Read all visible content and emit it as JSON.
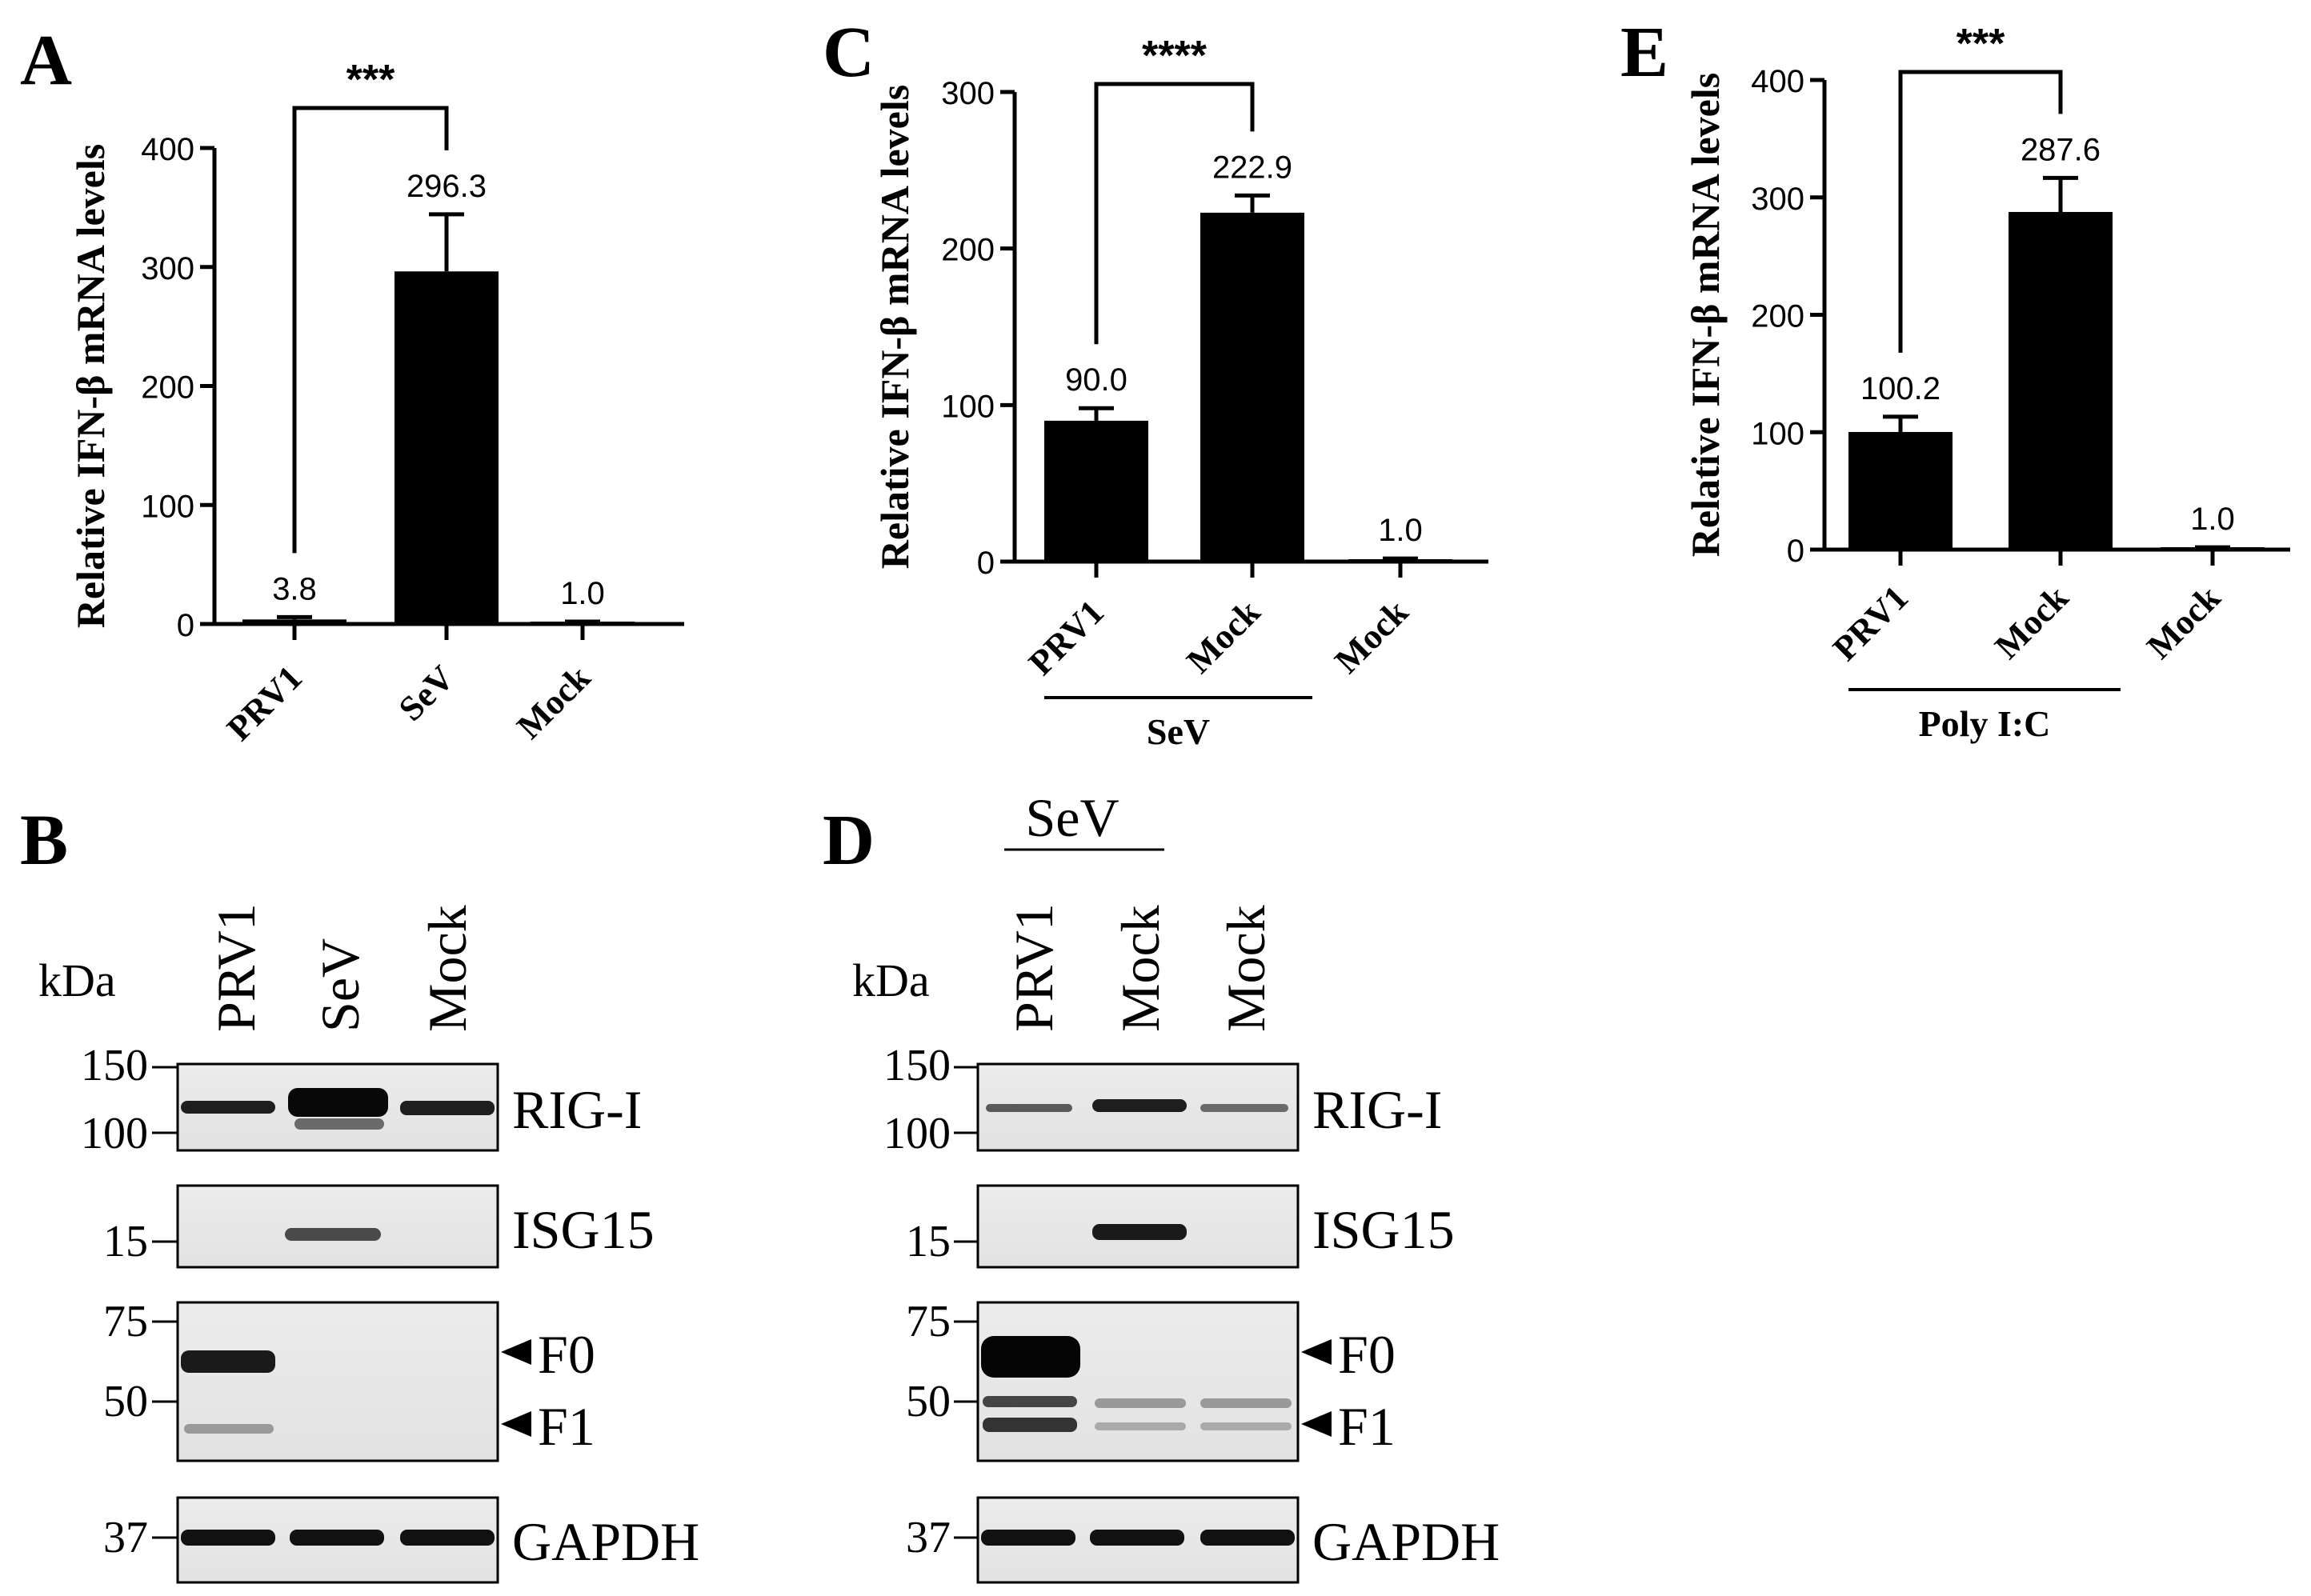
{
  "figure": {
    "panels": {
      "A": {
        "letter": "A",
        "ylabel": "Relative IFN-β mRNA levels",
        "significance": "***"
      },
      "B": {
        "letter": "B",
        "kda_label": "kDa",
        "lanes": [
          "PRV1",
          "SeV",
          "Mock"
        ]
      },
      "C": {
        "letter": "C",
        "ylabel": "Relative IFN-β mRNA levels",
        "significance": "****",
        "group_label": "SeV"
      },
      "D": {
        "letter": "D",
        "kda_label": "kDa",
        "group_label": "SeV",
        "lanes": [
          "PRV1",
          "Mock",
          "Mock"
        ]
      },
      "E": {
        "letter": "E",
        "ylabel": "Relative IFN-β mRNA levels",
        "significance": "***",
        "group_label": "Poly I:C"
      }
    },
    "blots": {
      "rows": [
        {
          "label": "RIG-I",
          "markers": [
            "150",
            "100"
          ]
        },
        {
          "label": "ISG15",
          "markers": [
            "15"
          ]
        },
        {
          "label": "F0",
          "label2": "F1",
          "markers": [
            "75",
            "50"
          ]
        },
        {
          "label": "GAPDH",
          "markers": [
            "37"
          ]
        }
      ]
    }
  },
  "chart_data": [
    {
      "type": "bar",
      "panel": "A",
      "categories": [
        "PRV1",
        "SeV",
        "Mock"
      ],
      "values": [
        3.8,
        296.3,
        1.0
      ],
      "value_labels": [
        "3.8",
        "296.3",
        "1.0"
      ],
      "errors": [
        2,
        48,
        1
      ],
      "ylabel": "Relative IFN-β mRNA levels",
      "ylim": [
        0,
        400
      ],
      "yticks": [
        "0",
        "100",
        "200",
        "300",
        "400"
      ],
      "significance": {
        "between": [
          "PRV1",
          "SeV"
        ],
        "label": "***"
      },
      "grid": false,
      "color": "#000000"
    },
    {
      "type": "bar",
      "panel": "C",
      "categories": [
        "PRV1",
        "Mock",
        "Mock"
      ],
      "values": [
        90.0,
        222.9,
        1.0
      ],
      "value_labels": [
        "90.0",
        "222.9",
        "1.0"
      ],
      "errors": [
        8,
        11,
        1
      ],
      "ylabel": "Relative IFN-β mRNA levels",
      "ylim": [
        0,
        300
      ],
      "yticks": [
        "0",
        "100",
        "200",
        "300"
      ],
      "group_label": "SeV",
      "significance": {
        "between": [
          "PRV1",
          "Mock"
        ],
        "label": "****"
      },
      "grid": false,
      "color": "#000000"
    },
    {
      "type": "bar",
      "panel": "E",
      "categories": [
        "PRV1",
        "Mock",
        "Mock"
      ],
      "values": [
        100.2,
        287.6,
        1.0
      ],
      "value_labels": [
        "100.2",
        "287.6",
        "1.0"
      ],
      "errors": [
        13,
        29,
        1
      ],
      "ylabel": "Relative IFN-β mRNA levels",
      "ylim": [
        0,
        400
      ],
      "yticks": [
        "0",
        "100",
        "200",
        "300",
        "400"
      ],
      "group_label": "Poly I:C",
      "significance": {
        "between": [
          "PRV1",
          "Mock"
        ],
        "label": "***"
      },
      "grid": false,
      "color": "#000000"
    }
  ]
}
